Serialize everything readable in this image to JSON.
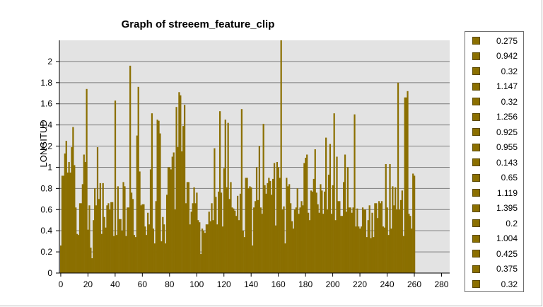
{
  "chart_data": {
    "type": "bar",
    "title": "Graph of streeem_feature_clip",
    "xlabel": "",
    "ylabel": "LONGITUD",
    "xlim": [
      -1,
      286
    ],
    "ylim": [
      0,
      2.2
    ],
    "xticks": [
      0,
      20,
      40,
      60,
      80,
      100,
      120,
      140,
      160,
      180,
      200,
      220,
      240,
      260,
      280
    ],
    "yticks": [
      0,
      0.2,
      0.4,
      0.6,
      0.8,
      1,
      1.2,
      1.4,
      1.6,
      1.8,
      2
    ],
    "grid": true,
    "legend_position": "right",
    "bar_color": "#8b6f00",
    "plot_background": "#e3e3e3",
    "values": [
      0.26,
      0.92,
      0.92,
      1.13,
      1.25,
      0.95,
      1.05,
      0.95,
      1.19,
      1.38,
      1.02,
      0.62,
      0.37,
      0.36,
      0.66,
      0.66,
      0.84,
      1.12,
      1.05,
      1.74,
      0.41,
      0.64,
      0.24,
      0.14,
      0.5,
      0.8,
      0.64,
      1.19,
      0.7,
      0.85,
      0.37,
      0.85,
      0.53,
      0.43,
      0.64,
      0.66,
      0.6,
      0.67,
      0.67,
      0.35,
      1.63,
      0.36,
      0.82,
      0.51,
      0.51,
      0.4,
      0.86,
      0.82,
      0.35,
      0.62,
      0.62,
      1.96,
      0.76,
      0.7,
      0.36,
      0.34,
      1.3,
      1.76,
      0.96,
      0.64,
      0.65,
      0.65,
      0.44,
      0.36,
      0.57,
      0.46,
      0.98,
      1.51,
      0.42,
      0.28,
      0.68,
      1.45,
      1.44,
      1.32,
      0.3,
      0.53,
      0.46,
      0.28,
      0.74,
      1.0,
      1.0,
      0.98,
      1.1,
      1.14,
      0.6,
      1.57,
      1.19,
      1.71,
      1.68,
      1.15,
      1.39,
      1.59,
      0.66,
      0.86,
      0.86,
      0.46,
      0.58,
      0.66,
      0.81,
      0.66,
      0.76,
      0.5,
      0.48,
      0.18,
      0.42,
      0.4,
      0.38,
      0.46,
      0.46,
      0.58,
      0.49,
      0.66,
      0.5,
      1.18,
      0.72,
      0.46,
      0.77,
      1.53,
      0.76,
      0.44,
      0.99,
      1.45,
      0.81,
      1.42,
      0.7,
      0.86,
      0.62,
      0.61,
      0.59,
      0.54,
      0.73,
      0.5,
      0.75,
      1.55,
      0.4,
      0.34,
      0.9,
      0.9,
      0.8,
      0.82,
      0.81,
      0.26,
      0.62,
      0.68,
      1.0,
      0.69,
      1.2,
      0.62,
      0.56,
      1.41,
      0.83,
      0.75,
      0.85,
      0.9,
      0.87,
      0.74,
      0.89,
      1.04,
      0.45,
      1.05,
      1.0,
      0.9,
      2.2,
      0.6,
      0.63,
      0.28,
      0.9,
      0.82,
      0.84,
      0.66,
      0.49,
      0.42,
      0.6,
      0.62,
      0.8,
      0.56,
      0.62,
      0.68,
      0.64,
      1.04,
      1.09,
      1.12,
      0.57,
      0.5,
      0.78,
      0.77,
      0.89,
      1.17,
      0.76,
      0.65,
      0.57,
      0.84,
      0.78,
      0.56,
      0.77,
      1.28,
      0.6,
      0.93,
      1.22,
      0.56,
      0.83,
      1.51,
      0.5,
      1.1,
      0.68,
      0.68,
      0.54,
      0.54,
      0.86,
      1.12,
      0.58,
      1.0,
      0.62,
      0.62,
      0.57,
      0.62,
      1.5,
      0.44,
      0.61,
      0.44,
      0.42,
      0.44,
      0.62,
      0.6,
      0.6,
      0.34,
      0.5,
      0.64,
      0.33,
      0.57,
      0.34,
      0.66,
      0.66,
      0.52,
      0.68,
      0.66,
      0.68,
      0.44,
      0.43,
      1.03,
      0.62,
      0.36,
      1.03,
      0.42,
      0.82,
      0.64,
      0.81,
      0.6,
      1.8,
      0.6,
      0.69,
      0.78,
      0.35,
      1.66,
      1.66,
      1.72,
      0.56,
      0.54,
      0.42,
      0.94,
      0.92
    ]
  },
  "legend": {
    "items": [
      "0.275",
      "0.942",
      "0.32",
      "1.147",
      "0.32",
      "1.256",
      "0.925",
      "0.955",
      "0.143",
      "0.65",
      "1.119",
      "1.395",
      "0.2",
      "1.004",
      "0.425",
      "0.375",
      "0.32"
    ]
  }
}
